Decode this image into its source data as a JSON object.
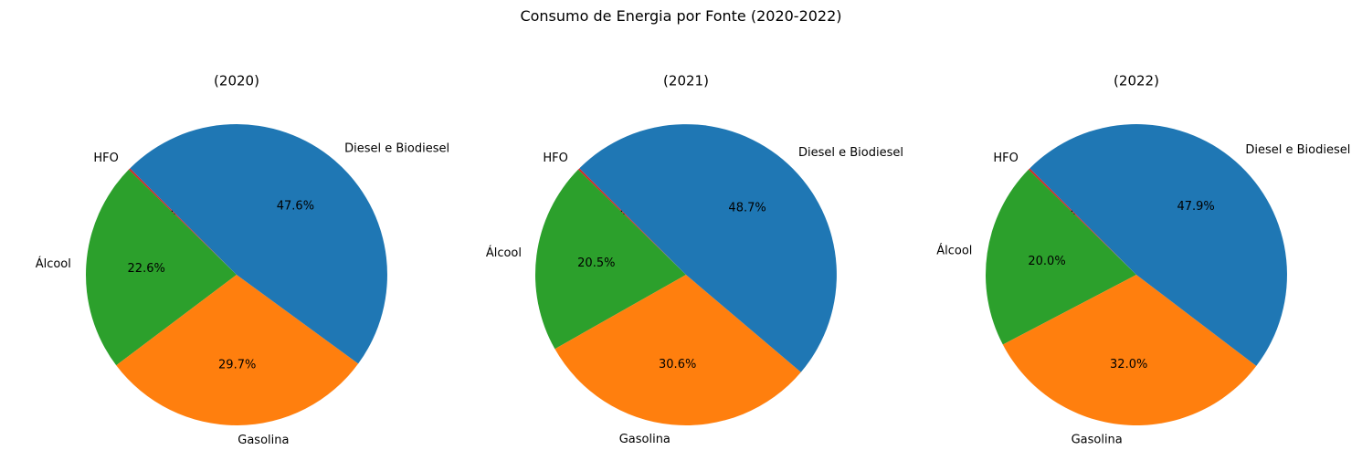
{
  "figure": {
    "title": "Consumo de Energia por Fonte (2020-2022)"
  },
  "chart_data": [
    {
      "type": "pie",
      "title": "(2020)",
      "labels": [
        "HFO",
        "Álcool",
        "Gasolina",
        "Diesel e Biodiesel"
      ],
      "values": [
        0.2,
        22.6,
        29.7,
        47.6
      ],
      "percent_labels": [
        "0.2%",
        "22.6%",
        "29.7%",
        "47.6%"
      ],
      "colors": [
        "#d62728",
        "#2ca02c",
        "#ff7f0e",
        "#1f77b4"
      ],
      "start_angle_deg": 135,
      "direction": "counterclockwise"
    },
    {
      "type": "pie",
      "title": "(2021)",
      "labels": [
        "HFO",
        "Álcool",
        "Gasolina",
        "Diesel e Biodiesel"
      ],
      "values": [
        0.2,
        20.5,
        30.6,
        48.7
      ],
      "percent_labels": [
        "0.2%",
        "20.5%",
        "30.6%",
        "48.7%"
      ],
      "colors": [
        "#d62728",
        "#2ca02c",
        "#ff7f0e",
        "#1f77b4"
      ],
      "start_angle_deg": 135,
      "direction": "counterclockwise"
    },
    {
      "type": "pie",
      "title": "(2022)",
      "labels": [
        "HFO",
        "Álcool",
        "Gasolina",
        "Diesel e Biodiesel"
      ],
      "values": [
        0.2,
        20.0,
        32.0,
        47.9
      ],
      "percent_labels": [
        "0.2%",
        "20.0%",
        "32.0%",
        "47.9%"
      ],
      "colors": [
        "#d62728",
        "#2ca02c",
        "#ff7f0e",
        "#1f77b4"
      ],
      "start_angle_deg": 135,
      "direction": "counterclockwise"
    }
  ]
}
